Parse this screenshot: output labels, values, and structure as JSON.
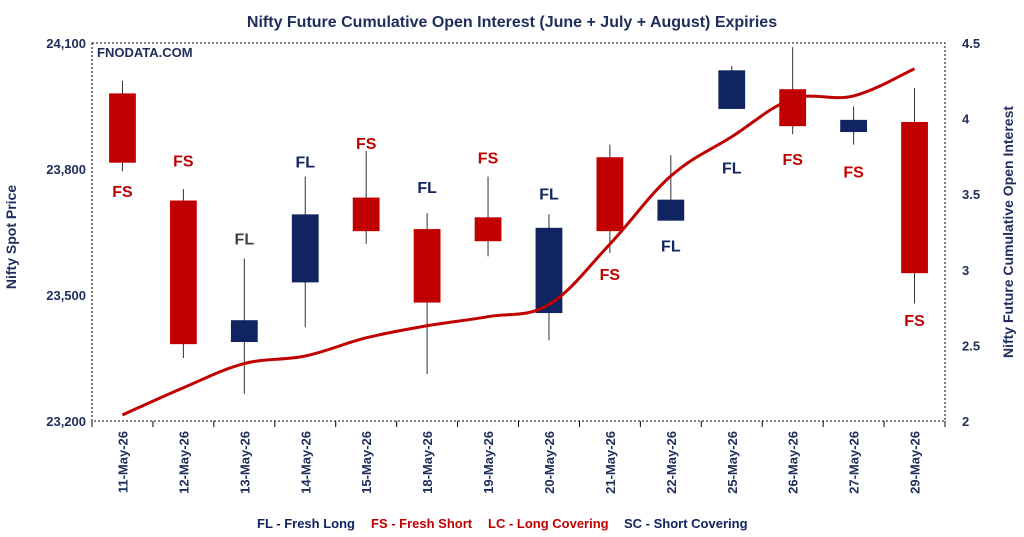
{
  "colors": {
    "bullish": "#0f2461",
    "bearish": "#c00000",
    "oi_line": "#c00000",
    "text": "#1f2d5a",
    "fs_label": "#c00000",
    "fl_label_dark": "#0f2461",
    "fl_label_grey": "#404040"
  },
  "chart_data": {
    "type": "candlestick_with_line",
    "title": "Nifty Future Cumulative Open Interest (June + July + August) Expiries",
    "watermark": "FNODATA.COM",
    "ylabel_left": "Nifty Spot Price",
    "ylabel_right": "Nifty Future Cumulative Open Interest",
    "ylim_left": [
      23200,
      24100
    ],
    "ylim_right": [
      2,
      4.5
    ],
    "yticks_left": [
      23200,
      23500,
      23800,
      24100
    ],
    "yticks_left_labels": [
      "23,200",
      "23,500",
      "23,800",
      "24,100"
    ],
    "yticks_right": [
      2,
      2.5,
      3,
      3.5,
      4,
      4.5
    ],
    "yticks_right_labels": [
      "2",
      "2.5",
      "3",
      "3.5",
      "4",
      "4.5"
    ],
    "grid": false,
    "categories": [
      "11-May-26",
      "12-May-26",
      "13-May-26",
      "14-May-26",
      "15-May-26",
      "18-May-26",
      "19-May-26",
      "20-May-26",
      "21-May-26",
      "22-May-26",
      "25-May-26",
      "26-May-26",
      "27-May-26",
      "29-May-26"
    ],
    "candles": [
      {
        "open": 23980,
        "high": 24010,
        "low": 23795,
        "close": 23815
      },
      {
        "open": 23725,
        "high": 23752,
        "low": 23350,
        "close": 23383
      },
      {
        "open": 23388,
        "high": 23587,
        "low": 23265,
        "close": 23440
      },
      {
        "open": 23530,
        "high": 23782,
        "low": 23423,
        "close": 23692
      },
      {
        "open": 23732,
        "high": 23843,
        "low": 23622,
        "close": 23652
      },
      {
        "open": 23657,
        "high": 23695,
        "low": 23312,
        "close": 23482
      },
      {
        "open": 23685,
        "high": 23782,
        "low": 23592,
        "close": 23628
      },
      {
        "open": 23457,
        "high": 23692,
        "low": 23392,
        "close": 23660
      },
      {
        "open": 23828,
        "high": 23858,
        "low": 23600,
        "close": 23652
      },
      {
        "open": 23677,
        "high": 23833,
        "low": 23677,
        "close": 23727
      },
      {
        "open": 23943,
        "high": 24045,
        "low": 23943,
        "close": 24035
      },
      {
        "open": 23990,
        "high": 24090,
        "low": 23883,
        "close": 23902
      },
      {
        "open": 23888,
        "high": 23949,
        "low": 23858,
        "close": 23917
      },
      {
        "open": 23912,
        "high": 23993,
        "low": 23480,
        "close": 23552
      }
    ],
    "series": [
      {
        "name": "Nifty Future Cumulative Open Interest",
        "axis": "right",
        "values": [
          2.04,
          2.22,
          2.38,
          2.43,
          2.55,
          2.63,
          2.69,
          2.77,
          3.17,
          3.62,
          3.88,
          4.13,
          4.15,
          4.33
        ]
      }
    ],
    "annotations": [
      {
        "text": "FS",
        "y": 23748,
        "color_key": "fs_label"
      },
      {
        "text": "FS",
        "y": 23820,
        "color_key": "fs_label"
      },
      {
        "text": "FL",
        "y": 23634,
        "color_key": "fl_label_grey"
      },
      {
        "text": "FL",
        "y": 23818,
        "color_key": "fl_label_dark"
      },
      {
        "text": "FS",
        "y": 23862,
        "color_key": "fs_label"
      },
      {
        "text": "FL",
        "y": 23757,
        "color_key": "fl_label_dark"
      },
      {
        "text": "FS",
        "y": 23827,
        "color_key": "fs_label"
      },
      {
        "text": "FL",
        "y": 23742,
        "color_key": "fl_label_dark"
      },
      {
        "text": "FS",
        "y": 23550,
        "color_key": "fs_label"
      },
      {
        "text": "FL",
        "y": 23618,
        "color_key": "fl_label_dark"
      },
      {
        "text": "FL",
        "y": 23804,
        "color_key": "fl_label_dark"
      },
      {
        "text": "FS",
        "y": 23824,
        "color_key": "fs_label"
      },
      {
        "text": "FS",
        "y": 23794,
        "color_key": "fs_label"
      },
      {
        "text": "FS",
        "y": 23440,
        "color_key": "fs_label"
      }
    ],
    "legend": [
      {
        "text": "FL - Fresh Long",
        "color_key": "bullish"
      },
      {
        "text": "FS - Fresh Short",
        "color_key": "bearish"
      },
      {
        "text": "LC - Long Covering",
        "color_key": "bearish"
      },
      {
        "text": "SC - Short Covering",
        "color_key": "bullish"
      }
    ],
    "legend_position": "bottom"
  }
}
